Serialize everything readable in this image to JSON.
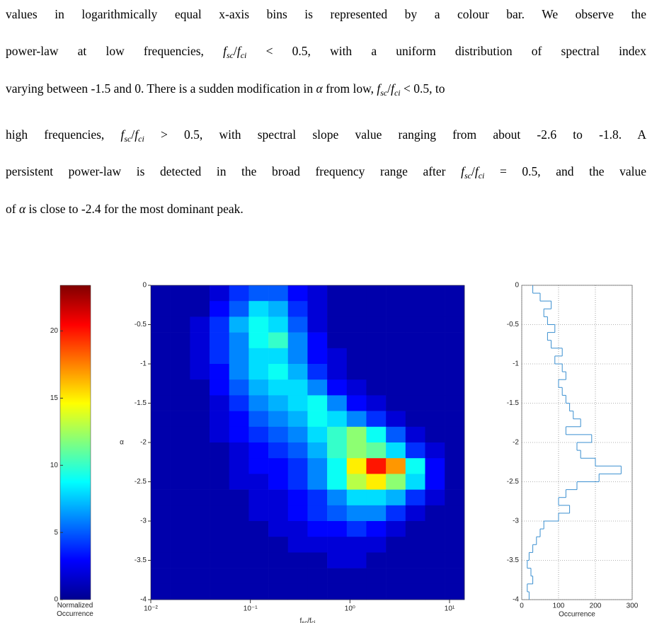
{
  "text": {
    "lines": [
      [
        {
          "text": "values in logarithmically equal x-axis bins is represented by a colour bar. We observe the"
        }
      ],
      [
        {
          "text": "power-law at low frequencies, "
        },
        {
          "text": "f",
          "style": "italic"
        },
        {
          "text": "sc",
          "style": "sub"
        },
        {
          "text": "/"
        },
        {
          "text": "f",
          "style": "italic"
        },
        {
          "text": "ci",
          "style": "sub"
        },
        {
          "text": " < 0.5, with a uniform distribution of spectral index"
        }
      ],
      [
        {
          "text": "varying between -1.5 and 0. There is a sudden modification in "
        },
        {
          "text": "α",
          "style": "italic"
        },
        {
          "text": " from low, "
        },
        {
          "text": "f",
          "style": "italic"
        },
        {
          "text": "sc",
          "style": "sub"
        },
        {
          "text": "/"
        },
        {
          "text": "f",
          "style": "italic"
        },
        {
          "text": "ci",
          "style": "sub"
        },
        {
          "text": " < 0.5, to"
        }
      ],
      [
        {
          "text": "high frequencies, "
        },
        {
          "text": "f",
          "style": "italic"
        },
        {
          "text": "sc",
          "style": "sub"
        },
        {
          "text": "/"
        },
        {
          "text": "f",
          "style": "italic"
        },
        {
          "text": "ci",
          "style": "sub"
        },
        {
          "text": " > 0.5, with spectral slope value ranging from about -2.6 to -1.8. A"
        }
      ],
      [
        {
          "text": "persistent power-law is detected in the broad frequency range after "
        },
        {
          "text": "f",
          "style": "italic"
        },
        {
          "text": "sc",
          "style": "sub"
        },
        {
          "text": "/"
        },
        {
          "text": "f",
          "style": "italic"
        },
        {
          "text": "ci",
          "style": "sub"
        },
        {
          "text": " = 0.5, and the value"
        }
      ],
      [
        {
          "text": "of "
        },
        {
          "text": "α",
          "style": "italic"
        },
        {
          "text": " is close to -2.4 for the most dominant peak."
        }
      ]
    ]
  },
  "chart_data": [
    {
      "type": "colorbar",
      "clim": [
        0,
        23.4
      ],
      "ticks": [
        0,
        5,
        10,
        15,
        20
      ],
      "label": "Normalized Occurrence"
    },
    {
      "type": "heatmap",
      "ylabel": "α",
      "xlabel_runs": [
        {
          "text": "f"
        },
        {
          "text": "sc",
          "style": "sub"
        },
        {
          "text": "/f"
        },
        {
          "text": "ci",
          "style": "sub"
        }
      ],
      "log_x": true,
      "xlim": [
        0.01,
        14.1
      ],
      "ylim": [
        -4,
        0
      ],
      "xticks": [
        {
          "value": 0.01,
          "label": "10⁻²"
        },
        {
          "value": 0.1,
          "label": "10⁻¹"
        },
        {
          "value": 1,
          "label": "10⁰"
        },
        {
          "value": 10,
          "label": "10¹"
        }
      ],
      "yticks": [
        -4,
        -3.5,
        -3,
        -2.5,
        -2,
        -1.5,
        -1,
        -0.5,
        0
      ],
      "x_bins": [
        0.01,
        0.01573,
        0.02475,
        0.03893,
        0.06124,
        0.09634,
        0.1516,
        0.2384,
        0.375,
        0.59,
        0.928,
        1.46,
        2.297,
        3.613,
        5.684,
        8.94,
        14.1
      ],
      "y_bins": [
        0,
        -0.2,
        -0.4,
        -0.6,
        -0.8,
        -1,
        -1.2,
        -1.4,
        -1.6,
        -1.8,
        -2,
        -2.2,
        -2.4,
        -2.6,
        -2.8,
        -3,
        -3.2,
        -3.4,
        -3.6,
        -3.8,
        -4
      ],
      "z": [
        [
          1,
          1,
          1,
          2,
          4,
          5,
          5,
          3,
          2,
          1,
          1,
          1,
          1,
          1,
          1,
          1
        ],
        [
          1,
          1,
          1,
          3,
          5,
          8,
          7,
          4,
          2,
          1,
          1,
          1,
          1,
          1,
          1,
          1
        ],
        [
          1,
          1,
          2,
          4,
          7,
          9,
          8,
          5,
          2,
          1,
          1,
          1,
          1,
          1,
          1,
          1
        ],
        [
          1,
          1,
          2,
          4,
          6,
          9,
          10,
          6,
          3,
          1,
          1,
          1,
          1,
          1,
          1,
          1
        ],
        [
          1,
          1,
          2,
          4,
          6,
          8,
          8,
          6,
          3,
          2,
          1,
          1,
          1,
          1,
          1,
          1
        ],
        [
          1,
          1,
          2,
          3,
          6,
          8,
          9,
          7,
          4,
          2,
          1,
          1,
          1,
          1,
          1,
          1
        ],
        [
          1,
          1,
          1,
          3,
          5,
          7,
          8,
          8,
          6,
          3,
          2,
          1,
          1,
          1,
          1,
          1
        ],
        [
          1,
          1,
          1,
          2,
          4,
          6,
          7,
          8,
          9,
          6,
          3,
          2,
          1,
          1,
          1,
          1
        ],
        [
          1,
          1,
          1,
          2,
          3,
          5,
          6,
          7,
          9,
          8,
          6,
          4,
          2,
          1,
          1,
          1
        ],
        [
          1,
          1,
          1,
          2,
          3,
          4,
          5,
          6,
          8,
          10,
          12,
          9,
          5,
          2,
          1,
          1
        ],
        [
          1,
          1,
          1,
          1,
          2,
          3,
          4,
          5,
          7,
          10,
          12,
          11,
          8,
          4,
          2,
          1
        ],
        [
          1,
          1,
          1,
          1,
          2,
          3,
          3,
          4,
          6,
          9,
          15,
          20,
          17,
          9,
          3,
          1
        ],
        [
          1,
          1,
          1,
          1,
          2,
          2,
          3,
          4,
          6,
          9,
          13,
          15,
          12,
          8,
          3,
          1
        ],
        [
          1,
          1,
          1,
          1,
          1,
          2,
          2,
          3,
          4,
          6,
          8,
          8,
          7,
          4,
          2,
          1
        ],
        [
          1,
          1,
          1,
          1,
          1,
          2,
          2,
          3,
          4,
          5,
          6,
          6,
          4,
          2,
          1,
          1
        ],
        [
          1,
          1,
          1,
          1,
          1,
          1,
          2,
          2,
          3,
          3,
          4,
          3,
          2,
          1,
          1,
          1
        ],
        [
          1,
          1,
          1,
          1,
          1,
          1,
          1,
          2,
          2,
          2,
          2,
          2,
          1,
          1,
          1,
          1
        ],
        [
          1,
          1,
          1,
          1,
          1,
          1,
          1,
          1,
          1,
          2,
          2,
          1,
          1,
          1,
          1,
          1
        ],
        [
          1,
          1,
          1,
          1,
          1,
          1,
          1,
          1,
          1,
          1,
          1,
          1,
          1,
          1,
          1,
          1
        ],
        [
          1,
          1,
          1,
          1,
          1,
          1,
          1,
          1,
          1,
          1,
          1,
          1,
          1,
          1,
          1,
          1
        ]
      ]
    },
    {
      "type": "histogram",
      "orientation": "horizontal",
      "xlabel": "Occurrence",
      "color": "#3a8fd0",
      "grid": true,
      "xlim": [
        0,
        300
      ],
      "xticks": [
        0,
        100,
        200,
        300
      ],
      "ylim": [
        -4,
        0
      ],
      "yticks": [
        -4,
        -3.5,
        -3,
        -2.5,
        -2,
        -1.5,
        -1,
        -0.5,
        0
      ],
      "bins": [
        0,
        -0.1,
        -0.2,
        -0.3,
        -0.4,
        -0.5,
        -0.6,
        -0.7,
        -0.8,
        -0.9,
        -1,
        -1.1,
        -1.2,
        -1.3,
        -1.4,
        -1.5,
        -1.6,
        -1.7,
        -1.8,
        -1.9,
        -2,
        -2.1,
        -2.2,
        -2.3,
        -2.4,
        -2.5,
        -2.6,
        -2.7,
        -2.8,
        -2.9,
        -3,
        -3.1,
        -3.2,
        -3.3,
        -3.4,
        -3.5,
        -3.6,
        -3.7,
        -3.8,
        -3.9,
        -4
      ],
      "values": [
        30,
        50,
        80,
        60,
        70,
        90,
        70,
        80,
        110,
        90,
        110,
        120,
        100,
        110,
        120,
        130,
        140,
        160,
        120,
        190,
        150,
        160,
        200,
        270,
        210,
        150,
        120,
        100,
        130,
        100,
        60,
        50,
        40,
        30,
        20,
        15,
        25,
        30,
        15,
        20
      ]
    }
  ]
}
